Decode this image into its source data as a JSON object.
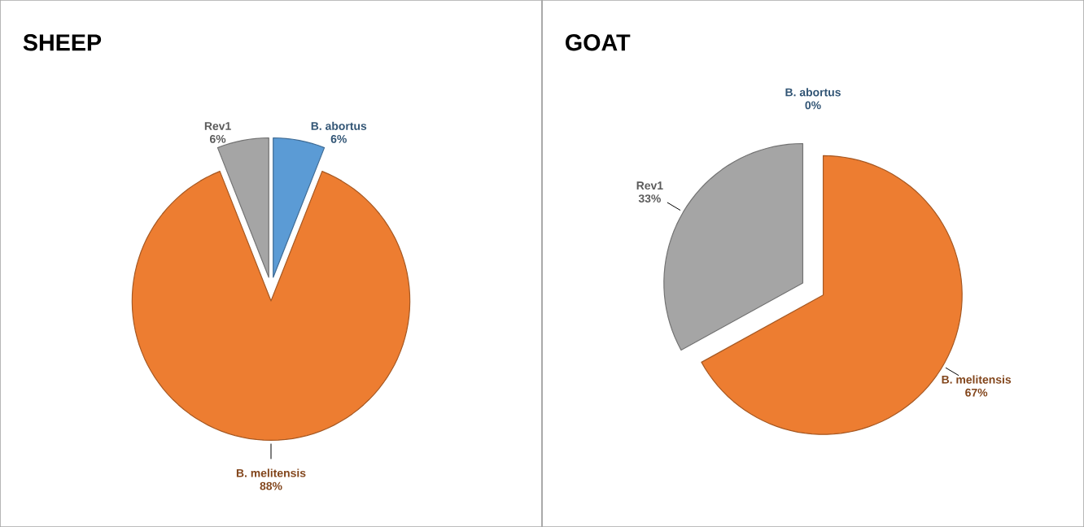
{
  "chart_data": [
    {
      "type": "pie",
      "title": "SHEEP",
      "categories": [
        "B. abortus",
        "B. melitensis",
        "Rev1"
      ],
      "values": [
        6,
        88,
        6
      ],
      "colors": [
        "#5b9bd5",
        "#ed7d31",
        "#a5a5a5"
      ],
      "value_labels": [
        "6%",
        "88%",
        "6%"
      ]
    },
    {
      "type": "pie",
      "title": "GOAT",
      "categories": [
        "B. abortus",
        "B. melitensis",
        "Rev1"
      ],
      "values": [
        0,
        67,
        33
      ],
      "colors": [
        "#5b9bd5",
        "#ed7d31",
        "#a5a5a5"
      ],
      "value_labels": [
        "0%",
        "67%",
        "33%"
      ]
    }
  ]
}
